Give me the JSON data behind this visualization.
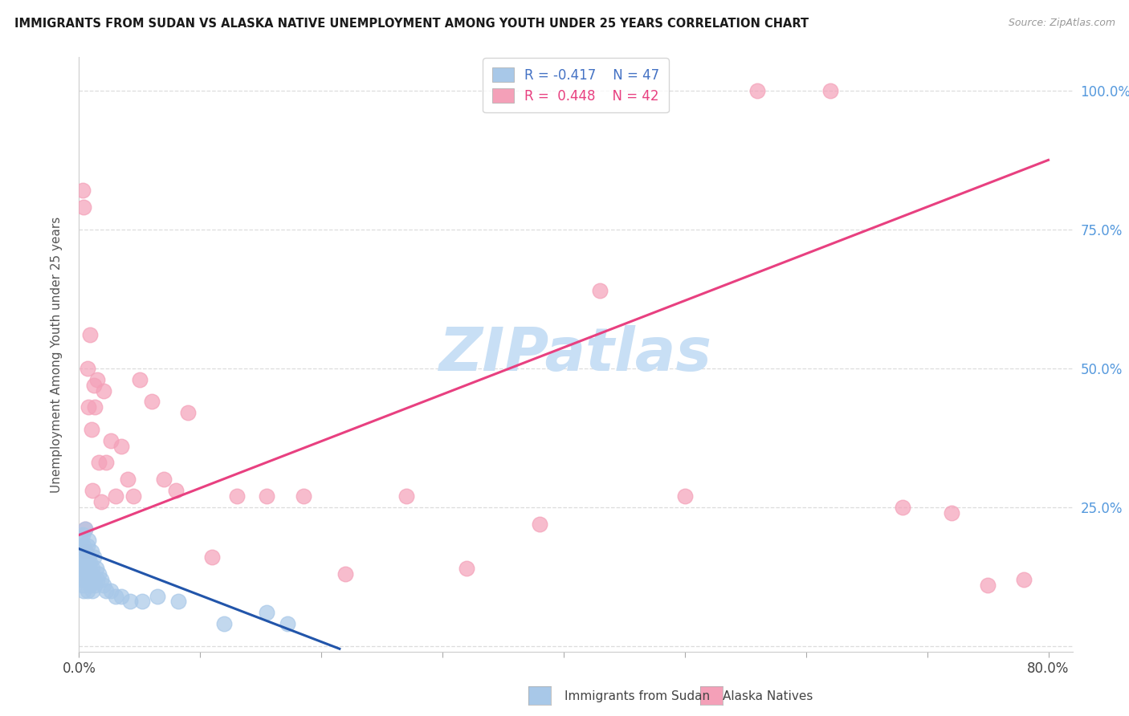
{
  "title": "IMMIGRANTS FROM SUDAN VS ALASKA NATIVE UNEMPLOYMENT AMONG YOUTH UNDER 25 YEARS CORRELATION CHART",
  "source": "Source: ZipAtlas.com",
  "ylabel": "Unemployment Among Youth under 25 years",
  "xlim": [
    0.0,
    0.82
  ],
  "ylim": [
    -0.01,
    1.06
  ],
  "xtick_positions": [
    0.0,
    0.1,
    0.2,
    0.3,
    0.4,
    0.5,
    0.6,
    0.7,
    0.8
  ],
  "xticklabels": [
    "0.0%",
    "",
    "",
    "",
    "",
    "",
    "",
    "",
    "80.0%"
  ],
  "ytick_positions": [
    0.0,
    0.25,
    0.5,
    0.75,
    1.0
  ],
  "yticklabels_right": [
    "",
    "25.0%",
    "50.0%",
    "75.0%",
    "100.0%"
  ],
  "legend_blue_r": "R = -0.417",
  "legend_blue_n": "N = 47",
  "legend_pink_r": "R =  0.448",
  "legend_pink_n": "N = 42",
  "blue_scatter_color": "#a8c8e8",
  "pink_scatter_color": "#f4a0b8",
  "blue_line_color": "#2255aa",
  "pink_line_color": "#e84080",
  "watermark_text": "ZIPatlas",
  "watermark_color": "#c8dff5",
  "blue_line_x0": 0.0,
  "blue_line_y0": 0.175,
  "blue_line_x1": 0.215,
  "blue_line_y1": -0.005,
  "pink_line_x0": 0.0,
  "pink_line_y0": 0.2,
  "pink_line_x1": 0.8,
  "pink_line_y1": 0.875,
  "blue_x": [
    0.001,
    0.001,
    0.002,
    0.002,
    0.002,
    0.003,
    0.003,
    0.003,
    0.004,
    0.004,
    0.004,
    0.005,
    0.005,
    0.005,
    0.006,
    0.006,
    0.007,
    0.007,
    0.007,
    0.008,
    0.008,
    0.008,
    0.009,
    0.009,
    0.01,
    0.01,
    0.011,
    0.011,
    0.012,
    0.012,
    0.013,
    0.014,
    0.015,
    0.016,
    0.018,
    0.02,
    0.022,
    0.026,
    0.03,
    0.035,
    0.042,
    0.052,
    0.065,
    0.082,
    0.12,
    0.155,
    0.172
  ],
  "blue_y": [
    0.14,
    0.18,
    0.12,
    0.16,
    0.19,
    0.11,
    0.15,
    0.2,
    0.1,
    0.14,
    0.18,
    0.13,
    0.17,
    0.21,
    0.12,
    0.16,
    0.1,
    0.14,
    0.18,
    0.12,
    0.16,
    0.19,
    0.11,
    0.15,
    0.13,
    0.17,
    0.1,
    0.14,
    0.12,
    0.16,
    0.11,
    0.14,
    0.12,
    0.13,
    0.12,
    0.11,
    0.1,
    0.1,
    0.09,
    0.09,
    0.08,
    0.08,
    0.09,
    0.08,
    0.04,
    0.06,
    0.04
  ],
  "pink_x": [
    0.003,
    0.004,
    0.005,
    0.006,
    0.007,
    0.008,
    0.009,
    0.01,
    0.011,
    0.012,
    0.013,
    0.015,
    0.016,
    0.018,
    0.02,
    0.022,
    0.026,
    0.03,
    0.035,
    0.04,
    0.045,
    0.05,
    0.06,
    0.07,
    0.08,
    0.09,
    0.11,
    0.13,
    0.155,
    0.185,
    0.22,
    0.27,
    0.32,
    0.38,
    0.43,
    0.5,
    0.56,
    0.62,
    0.68,
    0.72,
    0.75,
    0.78
  ],
  "pink_y": [
    0.82,
    0.79,
    0.21,
    0.17,
    0.5,
    0.43,
    0.56,
    0.39,
    0.28,
    0.47,
    0.43,
    0.48,
    0.33,
    0.26,
    0.46,
    0.33,
    0.37,
    0.27,
    0.36,
    0.3,
    0.27,
    0.48,
    0.44,
    0.3,
    0.28,
    0.42,
    0.16,
    0.27,
    0.27,
    0.27,
    0.13,
    0.27,
    0.14,
    0.22,
    0.64,
    0.27,
    1.0,
    1.0,
    0.25,
    0.24,
    0.11,
    0.12
  ]
}
